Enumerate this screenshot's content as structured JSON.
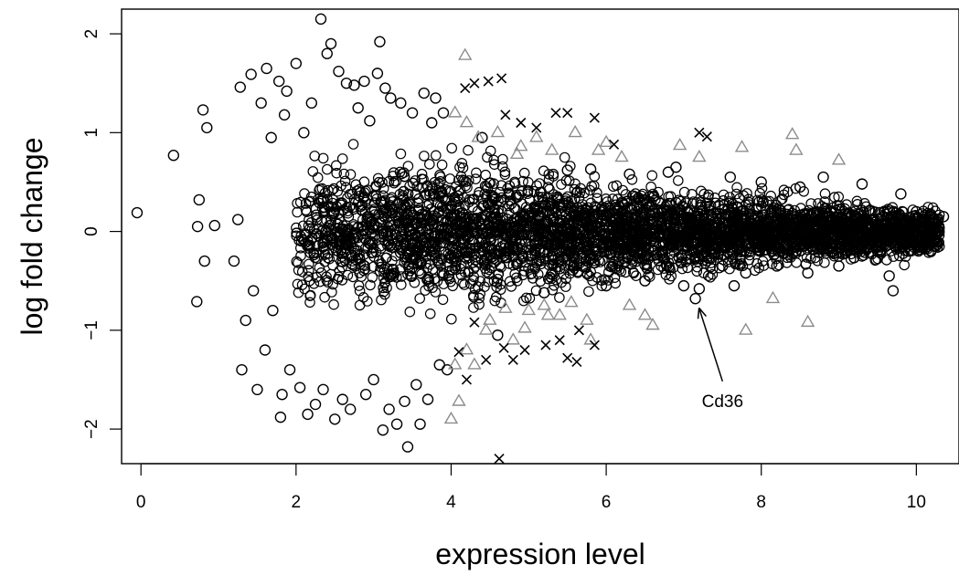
{
  "chart_data": {
    "type": "scatter",
    "title": "",
    "xlabel": "expression level",
    "ylabel": "log fold change",
    "xlim": [
      -0.25,
      10.55
    ],
    "ylim": [
      -2.35,
      2.25
    ],
    "x_ticks": [
      0,
      2,
      4,
      6,
      8,
      10
    ],
    "y_ticks": [
      -2,
      -1,
      0,
      1,
      2
    ],
    "grid": false,
    "legend": "none",
    "colors": {
      "black": "#000000",
      "gray": "#8c8c8c"
    },
    "series": [
      {
        "marker": "open-circle",
        "color": "#000000",
        "note_dense_cloud": "dense MA-plot cloud; outer/visible points listed",
        "points": [
          [
            -0.05,
            0.19
          ],
          [
            0.42,
            0.77
          ],
          [
            0.72,
            -0.71
          ],
          [
            0.75,
            0.32
          ],
          [
            0.8,
            1.23
          ],
          [
            0.82,
            -0.3
          ],
          [
            0.85,
            1.05
          ],
          [
            0.95,
            0.06
          ],
          [
            0.73,
            0.05
          ],
          [
            1.2,
            -0.3
          ],
          [
            1.25,
            0.12
          ],
          [
            1.28,
            1.46
          ],
          [
            1.3,
            -1.4
          ],
          [
            1.35,
            -0.9
          ],
          [
            1.42,
            1.59
          ],
          [
            1.45,
            -0.6
          ],
          [
            1.5,
            -1.6
          ],
          [
            1.55,
            1.3
          ],
          [
            1.6,
            -1.2
          ],
          [
            1.62,
            1.65
          ],
          [
            1.68,
            0.95
          ],
          [
            1.7,
            -0.8
          ],
          [
            1.78,
            1.52
          ],
          [
            1.8,
            -1.88
          ],
          [
            1.82,
            -1.65
          ],
          [
            1.85,
            1.18
          ],
          [
            1.88,
            1.42
          ],
          [
            1.92,
            -1.4
          ],
          [
            2.0,
            1.7
          ],
          [
            2.05,
            -1.58
          ],
          [
            2.1,
            1.0
          ],
          [
            2.15,
            -1.85
          ],
          [
            2.2,
            1.3
          ],
          [
            2.25,
            -1.75
          ],
          [
            2.32,
            2.15
          ],
          [
            2.35,
            -1.6
          ],
          [
            2.4,
            1.8
          ],
          [
            2.45,
            1.9
          ],
          [
            2.5,
            -1.9
          ],
          [
            2.55,
            1.62
          ],
          [
            2.6,
            -1.7
          ],
          [
            2.65,
            1.5
          ],
          [
            2.7,
            -1.8
          ],
          [
            2.75,
            1.48
          ],
          [
            2.8,
            1.25
          ],
          [
            2.88,
            1.52
          ],
          [
            2.9,
            -1.65
          ],
          [
            2.95,
            1.12
          ],
          [
            3.0,
            -1.5
          ],
          [
            3.05,
            1.6
          ],
          [
            3.08,
            1.92
          ],
          [
            3.12,
            -2.01
          ],
          [
            3.15,
            1.45
          ],
          [
            3.2,
            -1.8
          ],
          [
            3.22,
            1.35
          ],
          [
            3.3,
            -1.95
          ],
          [
            3.35,
            1.3
          ],
          [
            3.4,
            -1.72
          ],
          [
            3.44,
            -2.18
          ],
          [
            3.5,
            1.2
          ],
          [
            3.55,
            -1.55
          ],
          [
            3.6,
            -1.95
          ],
          [
            3.65,
            1.4
          ],
          [
            3.7,
            -1.7
          ],
          [
            3.75,
            1.1
          ],
          [
            3.8,
            1.35
          ],
          [
            3.85,
            -1.35
          ],
          [
            3.9,
            1.2
          ],
          [
            3.95,
            -1.4
          ],
          [
            4.4,
            0.95
          ],
          [
            4.6,
            -1.05
          ],
          [
            5.2,
            -0.62
          ],
          [
            5.5,
            0.62
          ],
          [
            5.8,
            0.63
          ],
          [
            6.0,
            -0.55
          ],
          [
            6.3,
            0.58
          ],
          [
            6.5,
            -0.5
          ],
          [
            6.8,
            0.6
          ],
          [
            6.9,
            0.65
          ],
          [
            7.0,
            -0.55
          ],
          [
            7.2,
            -0.58
          ],
          [
            7.15,
            -0.68
          ],
          [
            7.5,
            -0.35
          ],
          [
            7.6,
            0.55
          ],
          [
            7.65,
            -0.55
          ],
          [
            7.8,
            -0.42
          ],
          [
            8.0,
            0.5
          ],
          [
            8.2,
            -0.35
          ],
          [
            8.5,
            0.45
          ],
          [
            8.6,
            -0.42
          ],
          [
            8.8,
            0.55
          ],
          [
            9.0,
            -0.35
          ],
          [
            9.3,
            0.48
          ],
          [
            9.5,
            -0.2
          ],
          [
            9.65,
            -0.45
          ],
          [
            9.7,
            -0.6
          ],
          [
            9.8,
            0.38
          ],
          [
            10.0,
            0.2
          ],
          [
            10.2,
            0.15
          ],
          [
            10.35,
            0.15
          ]
        ]
      },
      {
        "marker": "triangle",
        "color": "#8c8c8c",
        "points": [
          [
            4.0,
            -1.9
          ],
          [
            4.1,
            -1.72
          ],
          [
            4.18,
            1.78
          ],
          [
            4.3,
            -1.35
          ],
          [
            4.5,
            -0.9
          ],
          [
            4.8,
            -1.1
          ],
          [
            5.0,
            -0.8
          ],
          [
            5.4,
            -0.85
          ],
          [
            5.8,
            -1.1
          ],
          [
            6.0,
            0.9
          ],
          [
            6.5,
            -0.85
          ],
          [
            6.6,
            -0.95
          ],
          [
            6.95,
            0.87
          ],
          [
            7.2,
            0.75
          ],
          [
            7.75,
            0.85
          ],
          [
            7.8,
            -1.0
          ],
          [
            8.15,
            -0.68
          ],
          [
            8.4,
            0.98
          ],
          [
            8.45,
            0.82
          ],
          [
            8.6,
            -0.92
          ],
          [
            9.0,
            0.72
          ],
          [
            4.05,
            1.2
          ],
          [
            4.2,
            1.1
          ],
          [
            4.35,
            0.95
          ],
          [
            4.6,
            1.0
          ],
          [
            4.85,
            0.78
          ],
          [
            5.1,
            0.95
          ],
          [
            5.3,
            0.82
          ],
          [
            5.6,
            1.0
          ],
          [
            5.9,
            0.82
          ],
          [
            4.05,
            -1.35
          ],
          [
            4.2,
            -1.2
          ],
          [
            4.45,
            -1.0
          ],
          [
            4.7,
            -0.78
          ],
          [
            4.95,
            -0.98
          ],
          [
            5.25,
            -0.85
          ],
          [
            5.55,
            -0.72
          ],
          [
            5.75,
            -0.9
          ],
          [
            6.3,
            -0.75
          ],
          [
            6.2,
            0.75
          ],
          [
            4.9,
            0.86
          ],
          [
            5.2,
            -0.75
          ]
        ]
      },
      {
        "marker": "cross",
        "color": "#000000",
        "points": [
          [
            4.18,
            1.45
          ],
          [
            4.3,
            1.5
          ],
          [
            4.48,
            1.52
          ],
          [
            4.65,
            1.55
          ],
          [
            4.7,
            1.18
          ],
          [
            4.9,
            1.1
          ],
          [
            5.1,
            1.05
          ],
          [
            5.35,
            1.2
          ],
          [
            5.5,
            1.2
          ],
          [
            5.85,
            1.15
          ],
          [
            6.1,
            0.88
          ],
          [
            7.2,
            1.0
          ],
          [
            7.3,
            0.96
          ],
          [
            4.62,
            -2.3
          ],
          [
            4.3,
            -0.92
          ],
          [
            4.1,
            -1.22
          ],
          [
            4.45,
            -1.3
          ],
          [
            4.68,
            -1.18
          ],
          [
            4.95,
            -1.2
          ],
          [
            5.22,
            -1.15
          ],
          [
            5.4,
            -1.1
          ],
          [
            5.65,
            -1.0
          ],
          [
            5.62,
            -1.32
          ],
          [
            5.85,
            -1.15
          ],
          [
            5.5,
            -1.28
          ],
          [
            4.2,
            -1.5
          ],
          [
            4.8,
            -1.3
          ]
        ]
      }
    ],
    "annotations": [
      {
        "text": "Cd36",
        "point": [
          7.15,
          -0.7
        ],
        "label_at": [
          7.5,
          -1.72
        ]
      }
    ]
  }
}
